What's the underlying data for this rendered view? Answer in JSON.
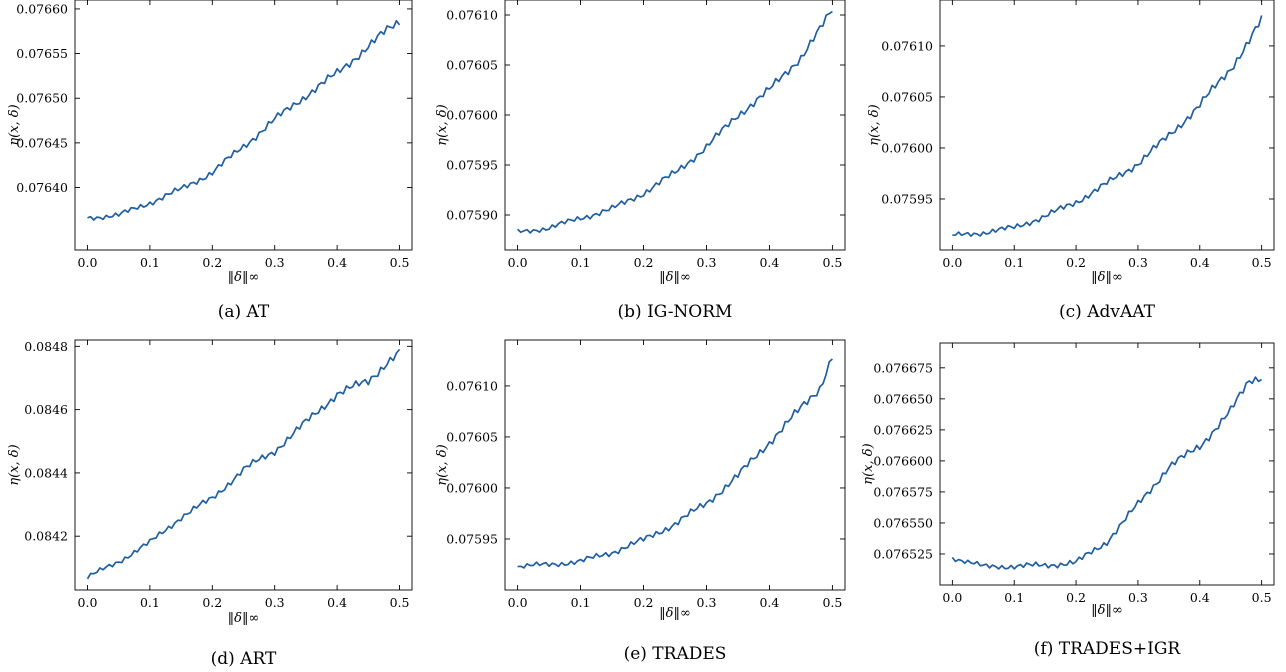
{
  "chart_data": [
    {
      "type": "line",
      "caption": "(a) AT",
      "xlabel": "‖δ‖∞",
      "ylabel": "η(x, δ)",
      "xlim": [
        -0.02,
        0.52
      ],
      "ylim": [
        0.07633,
        0.07661
      ],
      "xticks": [
        0.0,
        0.1,
        0.2,
        0.3,
        0.4,
        0.5
      ],
      "xtick_labels": [
        "0.0",
        "0.1",
        "0.2",
        "0.3",
        "0.4",
        "0.5"
      ],
      "yticks": [
        0.0764,
        0.07645,
        0.0765,
        0.07655,
        0.0766
      ],
      "ytick_labels": [
        "0.07640",
        "0.07645",
        "0.07650",
        "0.07655",
        "0.07660"
      ],
      "color": "#1f5fa0",
      "series": [
        {
          "x": [
            0.0,
            0.05,
            0.1,
            0.15,
            0.2,
            0.25,
            0.3,
            0.35,
            0.4,
            0.45,
            0.48,
            0.5
          ],
          "y": [
            0.076366,
            0.076369,
            0.076383,
            0.076398,
            0.076417,
            0.076446,
            0.076476,
            0.076503,
            0.076528,
            0.076558,
            0.076576,
            0.076586
          ]
        }
      ]
    },
    {
      "type": "line",
      "caption": "(b) IG-NORM",
      "xlabel": "‖δ‖∞",
      "ylabel": "η(x, δ)",
      "xlim": [
        -0.02,
        0.52
      ],
      "ylim": [
        0.075865,
        0.076115
      ],
      "xticks": [
        0.0,
        0.1,
        0.2,
        0.3,
        0.4,
        0.5
      ],
      "xtick_labels": [
        "0.0",
        "0.1",
        "0.2",
        "0.3",
        "0.4",
        "0.5"
      ],
      "yticks": [
        0.0759,
        0.07595,
        0.076,
        0.07605,
        0.0761
      ],
      "ytick_labels": [
        "0.07590",
        "0.07595",
        "0.07600",
        "0.07605",
        "0.07610"
      ],
      "color": "#1f5fa0",
      "series": [
        {
          "x": [
            0.0,
            0.05,
            0.1,
            0.15,
            0.2,
            0.25,
            0.3,
            0.35,
            0.4,
            0.45,
            0.48,
            0.5
          ],
          "y": [
            0.075883,
            0.075887,
            0.075897,
            0.075906,
            0.075922,
            0.075942,
            0.075968,
            0.076,
            0.076025,
            0.076058,
            0.076085,
            0.076105
          ]
        }
      ]
    },
    {
      "type": "line",
      "caption": "(c) AdvAAT",
      "xlabel": "‖δ‖∞",
      "ylabel": "η(x, δ)",
      "xlim": [
        -0.02,
        0.52
      ],
      "ylim": [
        0.0759,
        0.076145
      ],
      "xticks": [
        0.0,
        0.1,
        0.2,
        0.3,
        0.4,
        0.5
      ],
      "xtick_labels": [
        "0.0",
        "0.1",
        "0.2",
        "0.3",
        "0.4",
        "0.5"
      ],
      "yticks": [
        0.07595,
        0.076,
        0.07605,
        0.0761
      ],
      "ytick_labels": [
        "0.07595",
        "0.07600",
        "0.07605",
        "0.07610"
      ],
      "color": "#1f5fa0",
      "series": [
        {
          "x": [
            0.0,
            0.05,
            0.1,
            0.15,
            0.2,
            0.25,
            0.3,
            0.35,
            0.4,
            0.45,
            0.48,
            0.5
          ],
          "y": [
            0.075914,
            0.075917,
            0.075922,
            0.075933,
            0.075947,
            0.075965,
            0.075985,
            0.076012,
            0.076042,
            0.076078,
            0.076105,
            0.076125
          ]
        }
      ]
    },
    {
      "type": "line",
      "caption": "(d) ART",
      "xlabel": "‖δ‖∞",
      "ylabel": "η(x, δ)",
      "xlim": [
        -0.02,
        0.52
      ],
      "ylim": [
        0.08403,
        0.08482
      ],
      "xticks": [
        0.0,
        0.1,
        0.2,
        0.3,
        0.4,
        0.5
      ],
      "xtick_labels": [
        "0.0",
        "0.1",
        "0.2",
        "0.3",
        "0.4",
        "0.5"
      ],
      "yticks": [
        0.0842,
        0.0844,
        0.0846,
        0.0848
      ],
      "ytick_labels": [
        "0.0842",
        "0.0844",
        "0.0846",
        "0.0848"
      ],
      "color": "#1f5fa0",
      "series": [
        {
          "x": [
            0.0,
            0.05,
            0.1,
            0.15,
            0.2,
            0.25,
            0.3,
            0.35,
            0.4,
            0.45,
            0.48,
            0.5
          ],
          "y": [
            0.08407,
            0.08412,
            0.08418,
            0.08426,
            0.08432,
            0.08441,
            0.08447,
            0.08456,
            0.08465,
            0.08469,
            0.08475,
            0.08478
          ]
        }
      ]
    },
    {
      "type": "line",
      "caption": "(e) TRADES",
      "xlabel": "‖δ‖∞",
      "ylabel": "η(x, δ)",
      "xlim": [
        -0.02,
        0.52
      ],
      "ylim": [
        0.0759,
        0.076145
      ],
      "xticks": [
        0.0,
        0.1,
        0.2,
        0.3,
        0.4,
        0.5
      ],
      "xtick_labels": [
        "0.0",
        "0.1",
        "0.2",
        "0.3",
        "0.4",
        "0.5"
      ],
      "yticks": [
        0.07595,
        0.076,
        0.07605,
        0.0761
      ],
      "ytick_labels": [
        "0.07595",
        "0.07600",
        "0.07605",
        "0.07610"
      ],
      "color": "#1f5fa0",
      "series": [
        {
          "x": [
            0.0,
            0.05,
            0.1,
            0.15,
            0.2,
            0.25,
            0.3,
            0.35,
            0.4,
            0.45,
            0.48,
            0.5
          ],
          "y": [
            0.075923,
            0.075925,
            0.075928,
            0.075937,
            0.075949,
            0.075965,
            0.075985,
            0.076012,
            0.076045,
            0.076078,
            0.076098,
            0.07613
          ]
        }
      ]
    },
    {
      "type": "line",
      "caption": "(f) TRADES+IGR",
      "xlabel": "‖δ‖∞",
      "ylabel": "η(x, δ)",
      "xlim": [
        -0.02,
        0.52
      ],
      "ylim": [
        0.0765,
        0.076695
      ],
      "xticks": [
        0.0,
        0.1,
        0.2,
        0.3,
        0.4,
        0.5
      ],
      "xtick_labels": [
        "0.0",
        "0.1",
        "0.2",
        "0.3",
        "0.4",
        "0.5"
      ],
      "yticks": [
        0.076525,
        0.07655,
        0.076575,
        0.0766,
        0.076625,
        0.07665,
        0.076675
      ],
      "ytick_labels": [
        "0.076525",
        "0.076550",
        "0.076575",
        "0.076600",
        "0.076625",
        "0.076650",
        "0.076675"
      ],
      "color": "#1f5fa0",
      "series": [
        {
          "x": [
            0.0,
            0.05,
            0.1,
            0.15,
            0.2,
            0.25,
            0.3,
            0.35,
            0.4,
            0.45,
            0.48,
            0.5
          ],
          "y": [
            0.076522,
            0.076515,
            0.076515,
            0.076516,
            0.076518,
            0.076535,
            0.076565,
            0.076595,
            0.076612,
            0.07664,
            0.076665,
            0.076668
          ]
        }
      ]
    }
  ]
}
